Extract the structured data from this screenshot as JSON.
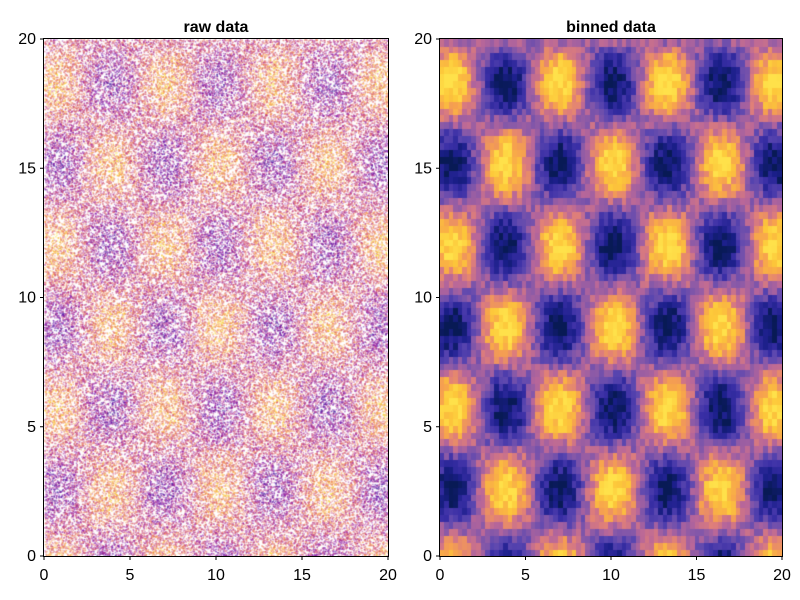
{
  "chart_data": [
    {
      "type": "scatter",
      "title": "raw data",
      "xlim": [
        0,
        20
      ],
      "ylim": [
        0,
        20
      ],
      "x_ticks": [
        "0",
        "5",
        "10",
        "15",
        "20"
      ],
      "y_ticks": [
        "0",
        "5",
        "10",
        "15",
        "20"
      ],
      "point_count_approx": 100000,
      "point_alpha": 0.45,
      "density": "sin(x)*sin(y)-like checkerboard pattern with period about 6.3 units",
      "colormap": "plasma-like (purple to orange)",
      "grid": false
    },
    {
      "type": "heatmap",
      "title": "binned data",
      "xlim": [
        0,
        20
      ],
      "ylim": [
        0,
        20
      ],
      "x_ticks": [
        "0",
        "5",
        "10",
        "15",
        "20"
      ],
      "y_ticks": [
        "0",
        "5",
        "10",
        "15",
        "20"
      ],
      "bins": [
        75,
        75
      ],
      "colormap": "plasma-like (dark blue to yellow)",
      "pattern": "checkerboard of high/low counts, period about 6.3 units",
      "grid": false
    }
  ],
  "colors": {
    "cmap": [
      "#0d0887",
      "#46039f",
      "#7201a8",
      "#9c179e",
      "#bd3786",
      "#d8576b",
      "#ed7953",
      "#fb9f3a",
      "#fdca26",
      "#f0f921"
    ],
    "binned_cmap": [
      "#081a55",
      "#1b1f8a",
      "#3a2fa6",
      "#5b47b0",
      "#8a5aa8",
      "#b8679a",
      "#e07f7a",
      "#f7a24e",
      "#fdc73a",
      "#ffe14a"
    ]
  }
}
